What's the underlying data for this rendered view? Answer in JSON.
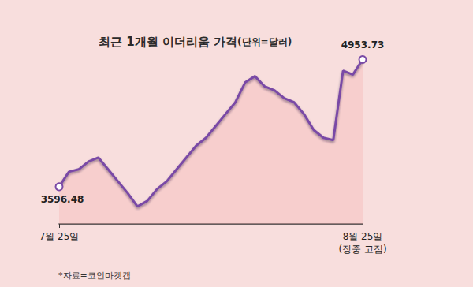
{
  "chart_data": {
    "type": "line",
    "title": "최근 1개월 이더리움 가격",
    "subtitle": "(단위=달러)",
    "source": "*자료=코인마켓캡",
    "categories": [
      "7월 25일",
      null,
      null,
      null,
      null,
      null,
      null,
      null,
      null,
      null,
      null,
      null,
      null,
      null,
      null,
      null,
      null,
      null,
      null,
      null,
      null,
      null,
      null,
      null,
      null,
      null,
      null,
      null,
      null,
      null,
      null,
      "8월 25일"
    ],
    "values": [
      3596.48,
      3756,
      3782,
      3866,
      3908,
      3782,
      3655,
      3529,
      3386,
      3445,
      3571,
      3655,
      3782,
      3908,
      4035,
      4119,
      4245,
      4372,
      4498,
      4709,
      4776,
      4666,
      4624,
      4540,
      4498,
      4372,
      4203,
      4119,
      4094,
      4835,
      4793,
      4953.73
    ],
    "annotations": [
      {
        "category": "7월 25일",
        "text": "3596.48"
      },
      {
        "category": "8월 25일",
        "text": "4953.73"
      }
    ],
    "x_annotation": {
      "category": "8월 25일",
      "text": "(장중 고점)"
    },
    "color": "#7a4aa6",
    "ylim": [
      3200,
      5000
    ],
    "grid": false,
    "tick_labels": "x"
  }
}
